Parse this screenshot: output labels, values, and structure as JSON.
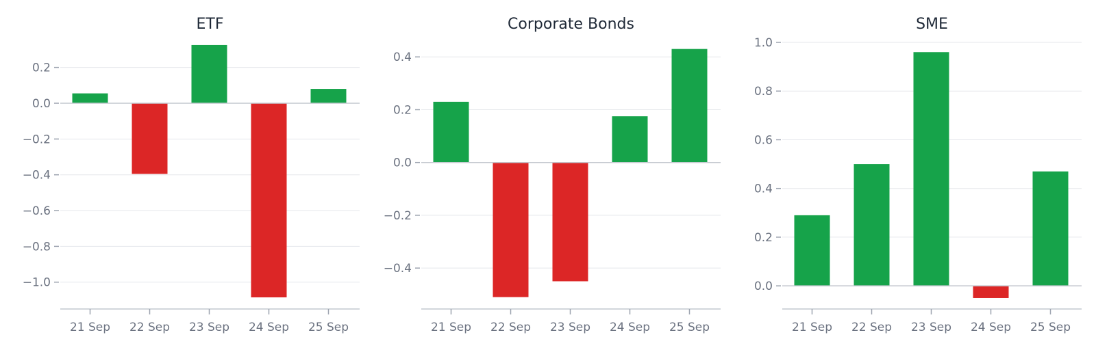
{
  "colors": {
    "positive": "#16a34a",
    "negative": "#dc2626"
  },
  "chart_data": [
    {
      "type": "bar",
      "title": "ETF",
      "categories": [
        "21 Sep",
        "22 Sep",
        "23 Sep",
        "24 Sep",
        "25 Sep"
      ],
      "values": [
        0.055,
        -0.395,
        0.325,
        -1.085,
        0.08
      ],
      "ylim": [
        -1.15,
        0.34
      ],
      "yticks": [
        0.2,
        0.0,
        -0.2,
        -0.4,
        -0.6,
        -0.8,
        -1.0
      ],
      "ytick_labels": [
        "0.2",
        "0.0",
        "−0.2",
        "−0.4",
        "−0.6",
        "−0.8",
        "−1.0"
      ],
      "grid": true
    },
    {
      "type": "bar",
      "title": "Corporate Bonds",
      "categories": [
        "21 Sep",
        "22 Sep",
        "23 Sep",
        "24 Sep",
        "25 Sep"
      ],
      "values": [
        0.23,
        -0.51,
        -0.45,
        0.175,
        0.43
      ],
      "ylim": [
        -0.555,
        0.455
      ],
      "yticks": [
        0.4,
        0.2,
        0.0,
        -0.2,
        -0.4
      ],
      "ytick_labels": [
        "0.4",
        "0.2",
        "0.0",
        "−0.2",
        "−0.4"
      ],
      "grid": true
    },
    {
      "type": "bar",
      "title": "SME",
      "categories": [
        "21 Sep",
        "22 Sep",
        "23 Sep",
        "24 Sep",
        "25 Sep"
      ],
      "values": [
        0.29,
        0.5,
        0.96,
        -0.05,
        0.47
      ],
      "ylim": [
        -0.095,
        1.0
      ],
      "yticks": [
        1.0,
        0.8,
        0.6,
        0.4,
        0.2,
        0.0
      ],
      "ytick_labels": [
        "1.0",
        "0.8",
        "0.6",
        "0.4",
        "0.2",
        "0.0"
      ],
      "grid": true
    }
  ]
}
